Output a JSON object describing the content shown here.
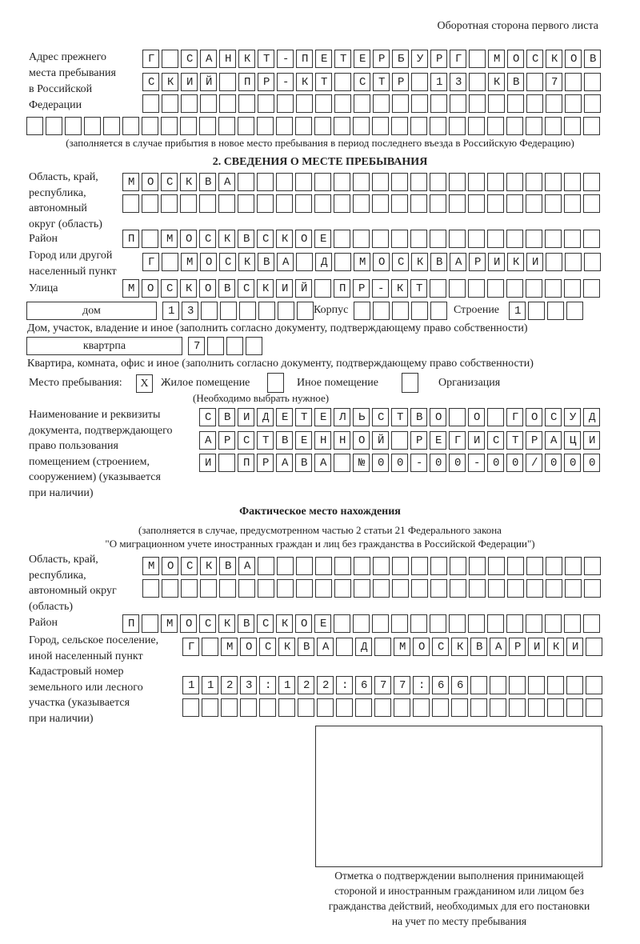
{
  "header": "Оборотная сторона первого листа",
  "previous_address": {
    "label": [
      "Адрес прежнего",
      "места пребывания",
      "в Российской",
      "Федерации"
    ],
    "rows": [
      "Г САНКТ-ПЕТЕРБУРГ МОСКОВ",
      "СКИЙ ПР-КТ СТР 13 КВ 7  ",
      "                        ",
      "                              "
    ],
    "note": "(заполняется в случае прибытия в новое место пребывания в период последнего въезда в Российскую Федерацию)"
  },
  "section2": {
    "title": "2. СВЕДЕНИЯ О МЕСТЕ ПРЕБЫВАНИЯ",
    "region_label": [
      "Область, край,",
      "республика,",
      "автономный",
      "округ (область)"
    ],
    "region_rows": [
      "МОСКВА                   ",
      "                         "
    ],
    "district_label": "Район",
    "district_row": "П МОСКВСКОЕ              ",
    "city_label": [
      "Город или другой",
      "населенный пункт"
    ],
    "city_row": "Г МОСКВА Д МОСКВАРИКИ   ",
    "street_label": "Улица",
    "street_row": "МОСКОВСКИЙ ПР-КТ         ",
    "house_type": "дом",
    "house_row": "13      ",
    "korpus_label": "Корпус",
    "korpus_row": "     ",
    "building_label": "Строение",
    "building_row": "1   ",
    "house_note": "Дом, участок, владение и иное (заполнить согласно документу, подтверждающему право собственности)",
    "apt_type": "квартрпа",
    "apt_row": "7   ",
    "apt_note": "Квартира, комната, офис и иное (заполнить согласно документу, подтверждающему право собственности)",
    "place_label": "Место пребывания:",
    "place_options": [
      {
        "mark": "X",
        "label": "Жилое помещение"
      },
      {
        "mark": "",
        "label": "Иное помещение"
      },
      {
        "mark": "",
        "label": "Организация"
      }
    ],
    "place_note": "(Необходимо выбрать нужное)",
    "doc_label": [
      "Наименование и реквизиты",
      "документа, подтверждающего",
      "право пользования",
      "помещением (строением,",
      "сооружением) (указывается",
      "при наличии)"
    ],
    "doc_rows": [
      "СВИДЕТЕЛЬСТВО О ГОСУД",
      "АРСТВЕННОЙ РЕГИСТРАЦИ",
      "И ПРАВА №00-00-00/000"
    ]
  },
  "actual": {
    "title": "Фактическое место нахождения",
    "note": [
      "(заполняется в случае, предусмотренном частью 2 статьи 21 Федерального закона",
      "\"О миграционном учете иностранных граждан и лиц без гражданства в Российской Федерации\")"
    ],
    "region_label": [
      "Область, край,",
      "республика,",
      "автономный округ",
      "(область)"
    ],
    "region_rows": [
      "МОСКВА                  ",
      "                        "
    ],
    "district_label": "Район",
    "district_row": "П МОСКВСКОЕ              ",
    "city_label": [
      "Город, сельское поселение,",
      "иной населенный пункт"
    ],
    "city_row": "Г МОСКВА Д МОСКВАРИКИ ",
    "cadastral_label": [
      "Кадастровый номер",
      "земельного или лесного",
      "участка (указывается",
      "при наличии)"
    ],
    "cadastral_rows": [
      "1123:122:677:66       ",
      "                      "
    ]
  },
  "stamp_caption": [
    "Отметка о подтверждении выполнения принимающей",
    "стороной и иностранным гражданином или лицом без",
    "гражданства действий, необходимых для его постановки",
    "на учет по месту пребывания"
  ]
}
